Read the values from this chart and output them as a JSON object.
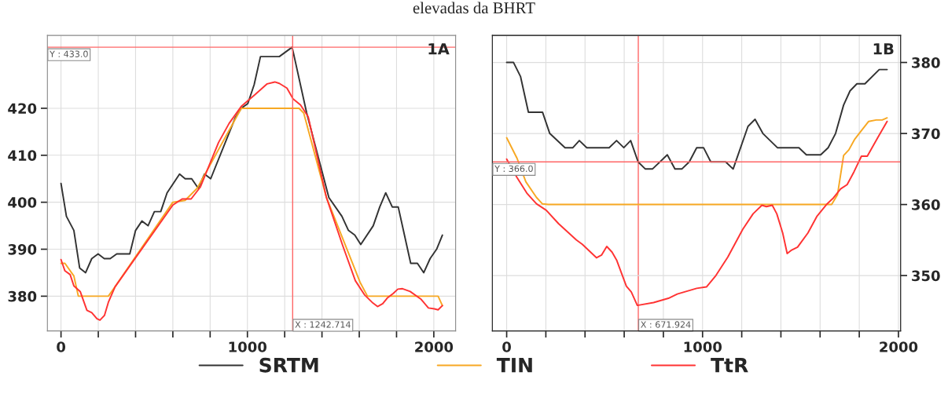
{
  "chart_data": [
    {
      "type": "line",
      "title": "elevadas da BHRT",
      "xlim": [
        -73,
        2117
      ],
      "ylim": [
        372.6,
        435.5
      ],
      "xticks": [
        0,
        {
          "value": 200,
          "label": null
        },
        {
          "value": 400,
          "label": null
        },
        {
          "value": 600,
          "label": null
        },
        {
          "value": 800,
          "label": null
        },
        1000,
        {
          "value": 1200,
          "label": null
        },
        {
          "value": 1400,
          "label": null
        },
        {
          "value": 1600,
          "label": null
        },
        {
          "value": 1800,
          "label": null
        },
        2000
      ],
      "yticks": [
        380,
        390,
        400,
        410,
        420
      ],
      "grid": true,
      "legend": "bottom",
      "line_style": "solid",
      "marker": "none",
      "annotations": [
        "1A"
      ],
      "ref_lines": [
        {
          "axis": "y",
          "value": 433.0,
          "label": "Y : 433.0",
          "color": "#ff6666"
        },
        {
          "axis": "x",
          "value": 1242.714,
          "label": "X : 1242.714",
          "color": "#ff6666"
        }
      ],
      "series": [
        {
          "name": "SRTM",
          "color": "#333333",
          "x": [
            0,
            29,
            69,
            100,
            132,
            165,
            199,
            232,
            264,
            299,
            369,
            400,
            434,
            467,
            501,
            535,
            569,
            636,
            666,
            701,
            736,
            770,
            803,
            935,
            967,
            1002,
            1036,
            1070,
            1171,
            1240,
            1318,
            1437,
            1507,
            1542,
            1576,
            1608,
            1675,
            1710,
            1742,
            1777,
            1809,
            1876,
            1912,
            1946,
            1980,
            2015,
            2046
          ],
          "values": [
            404,
            397,
            394,
            386,
            385,
            388,
            389,
            388,
            388,
            389,
            389,
            394,
            396,
            395,
            398,
            398,
            402,
            406,
            405,
            405,
            403,
            406,
            405,
            418,
            420,
            421,
            425,
            431,
            431,
            433,
            419,
            401,
            397,
            394,
            393,
            391,
            395,
            399,
            402,
            399,
            399,
            387,
            387,
            385,
            388,
            390,
            393
          ]
        },
        {
          "name": "TIN",
          "color": "#f7a823",
          "x": [
            0,
            21,
            69,
            93,
            254,
            290,
            600,
            666,
            731,
            967,
            1277,
            1302,
            1424,
            1604,
            1644,
            2023,
            2046
          ],
          "values": [
            387,
            387,
            384.3,
            380,
            380,
            382,
            400,
            400.4,
            403,
            420,
            420,
            419,
            401,
            383,
            380,
            380,
            378
          ]
        },
        {
          "name": "TtR",
          "color": "#ff3333",
          "x": [
            0,
            21,
            49,
            69,
            103,
            139,
            165,
            193,
            209,
            233,
            254,
            290,
            600,
            650,
            698,
            747,
            845,
            902,
            967,
            1041,
            1106,
            1147,
            1171,
            1212,
            1245,
            1285,
            1326,
            1424,
            1511,
            1579,
            1628,
            1669,
            1698,
            1726,
            1750,
            1783,
            1807,
            1832,
            1873,
            1930,
            1971,
            2003,
            2023,
            2046
          ],
          "values": [
            387.8,
            385.4,
            384.6,
            382.2,
            381,
            377,
            376.5,
            375.2,
            374.9,
            375.9,
            378.7,
            382,
            399.4,
            400.7,
            400.7,
            403.2,
            412.7,
            416.8,
            420.4,
            422.9,
            425.2,
            425.6,
            425.3,
            424.3,
            422,
            420.7,
            418.2,
            401,
            390.8,
            383.3,
            380.3,
            378.7,
            377.8,
            378.4,
            379.6,
            380.6,
            381.5,
            381.6,
            381,
            379.4,
            377.5,
            377.3,
            377.1,
            378
          ]
        }
      ]
    },
    {
      "type": "line",
      "xlim": [
        -73,
        2011
      ],
      "y2lim": [
        342.2,
        383.8
      ],
      "xticks": [
        0,
        {
          "value": 200,
          "label": null
        },
        {
          "value": 400,
          "label": null
        },
        {
          "value": 600,
          "label": null
        },
        {
          "value": 800,
          "label": null
        },
        1000,
        {
          "value": 1200,
          "label": null
        },
        {
          "value": 1400,
          "label": null
        },
        {
          "value": 1600,
          "label": null
        },
        {
          "value": 1800,
          "label": null
        },
        2000
      ],
      "y2ticks": [
        350,
        360,
        370,
        380
      ],
      "grid": true,
      "line_style": "solid",
      "marker": "none",
      "annotations": [
        "1B"
      ],
      "ref_lines": [
        {
          "axis": "y2",
          "value": 366.0,
          "label": "Y : 366.0",
          "color": "#ff6666"
        },
        {
          "axis": "x",
          "value": 671.924,
          "label": "X : 671.924",
          "color": "#ff6666"
        }
      ],
      "series": [
        {
          "color": "#333333",
          "axis": "y2",
          "x": [
            0,
            35,
            71,
            111,
            183,
            220,
            298,
            338,
            371,
            409,
            523,
            561,
            598,
            633,
            671,
            708,
            744,
            820,
            859,
            894,
            932,
            970,
            1005,
            1042,
            1118,
            1156,
            1232,
            1268,
            1308,
            1382,
            1492,
            1530,
            1603,
            1641,
            1679,
            1720,
            1753,
            1788,
            1829,
            1902,
            1942
          ],
          "values": [
            380,
            380,
            378,
            373,
            373,
            370,
            368,
            368,
            369,
            368,
            368,
            369,
            368,
            369,
            366,
            365,
            365,
            367,
            365,
            365,
            366,
            368,
            368,
            366,
            366,
            365,
            371,
            372,
            370,
            368,
            368,
            367,
            367,
            368,
            370,
            374,
            376,
            377,
            377,
            379,
            379
          ]
        },
        {
          "color": "#f7a823",
          "axis": "y2",
          "x": [
            0,
            53,
            98,
            152,
            182,
            212,
            1659,
            1689,
            1720,
            1747,
            1777,
            1811,
            1848,
            1886,
            1917,
            1942
          ],
          "values": [
            369.4,
            366.5,
            363.2,
            361,
            360.1,
            360,
            360,
            361.4,
            366.9,
            367.7,
            369.2,
            370.4,
            371.7,
            371.9,
            371.9,
            372.2
          ]
        },
        {
          "color": "#ff3333",
          "axis": "y2",
          "x": [
            0,
            53,
            103,
            152,
            202,
            265,
            356,
            386,
            459,
            485,
            511,
            538,
            561,
            611,
            636,
            667,
            750,
            826,
            871,
            970,
            1020,
            1068,
            1129,
            1205,
            1258,
            1303,
            1326,
            1356,
            1379,
            1409,
            1432,
            1455,
            1485,
            1538,
            1583,
            1636,
            1667,
            1705,
            1738,
            1773,
            1811,
            1841,
            1894,
            1942
          ],
          "values": [
            366.4,
            363.8,
            361.6,
            360.1,
            359.2,
            357.3,
            355,
            354.4,
            352.5,
            352.9,
            354.1,
            353.3,
            352.2,
            348.5,
            347.7,
            345.8,
            346.2,
            346.8,
            347.4,
            348.2,
            348.4,
            350,
            352.6,
            356.5,
            358.7,
            359.9,
            359.7,
            359.9,
            358.7,
            356,
            353.1,
            353.6,
            354,
            356,
            358.3,
            360.1,
            360.9,
            362.2,
            362.8,
            364.6,
            366.8,
            366.8,
            369.4,
            371.7
          ]
        }
      ]
    }
  ]
}
